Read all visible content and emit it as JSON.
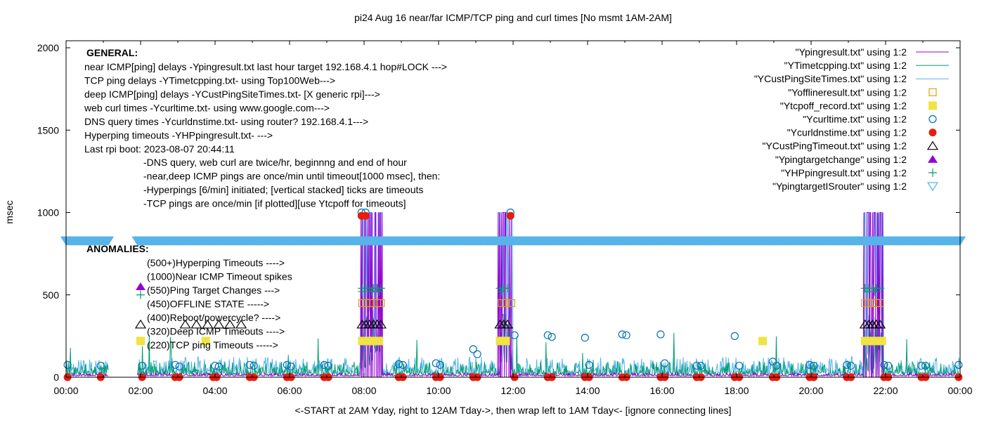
{
  "chart_data": {
    "type": "line",
    "title": "pi24 Aug 16  near/far ICMP/TCP ping and curl times [No msmt 1AM-2AM]",
    "xlabel": "<-START at 2AM Yday, right to 12AM Tday->, then wrap left to 1AM Tday<- [ignore connecting lines]",
    "ylabel": "msec",
    "xlim": [
      0,
      24
    ],
    "ylim": [
      0,
      2000
    ],
    "x_ticks": [
      "00:00",
      "02:00",
      "04:00",
      "06:00",
      "08:00",
      "10:00",
      "12:00",
      "14:00",
      "16:00",
      "18:00",
      "20:00",
      "22:00",
      "00:00"
    ],
    "y_ticks": [
      "0",
      "500",
      "1000",
      "1500",
      "2000"
    ],
    "legend_position": "top-right",
    "annotations": {
      "general_title": "GENERAL:",
      "general_lines": [
        "near ICMP[ping] delays -Ypingresult.txt last hour target 192.168.4.1 hop#LOCK --->",
        "TCP ping delays -YTimetcpping.txt- using Top100Web--->",
        "deep ICMP[ping] delays -YCustPingSiteTimes.txt- [X generic rpi]--->",
        "web curl times -Ycurltime.txt- using www.google.com--->",
        "DNS query times -Ycurldnstime.txt- using router? 192.168.4.1--->",
        "Hyperping timeouts -YHPpingresult.txt- --->",
        "Last rpi boot: 2023-08-07 20:44:11"
      ],
      "notes": [
        "-DNS query, web curl are twice/hr, beginnng and end of hour",
        "-near,deep ICMP pings are once/min until timeout[1000 msec], then:",
        "  -Hyperpings [6/min] initiated; [vertical stacked] ticks are timeouts",
        "-TCP pings are once/min [if plotted][use Ytcpoff for timeouts]"
      ],
      "anomalies_title": "ANOMALIES:",
      "anomalies": [
        "(500+)Hyperping Timeouts ---->",
        "(1000)Near ICMP Timeout spikes",
        "(550)Ping Target Changes --->",
        "(450)OFFLINE STATE ----->",
        "(400)Reboot/powercycle? ---->",
        "(320)Deep ICMP Timeouts ---->",
        "(220)TCP ping Timeouts ----->"
      ]
    },
    "outage_windows": [
      [
        7.9,
        8.5
      ],
      [
        11.6,
        12.0
      ],
      [
        21.4,
        21.95
      ]
    ],
    "gap_window": [
      1.15,
      1.9
    ],
    "series": [
      {
        "name": "\"Ypingresult.txt\" using 1:2",
        "style": "line",
        "color": "#9400d3",
        "baseline": 8,
        "noise": 10
      },
      {
        "name": "\"YTimetcpping.txt\" using 1:2",
        "style": "line",
        "color": "#009e73",
        "baseline": 15,
        "noise": 40
      },
      {
        "name": "\"YCustPingSiteTimes.txt\" using 1:2",
        "style": "line",
        "color": "#56b4e9",
        "baseline": 25,
        "noise": 50
      },
      {
        "name": "\"Yofflineresult.txt\" using 1:2",
        "style": "open-square",
        "color": "#e69f00",
        "points": [
          [
            7.95,
            450
          ],
          [
            8.05,
            450
          ],
          [
            8.15,
            450
          ],
          [
            8.25,
            450
          ],
          [
            8.35,
            450
          ],
          [
            8.45,
            450
          ],
          [
            11.7,
            450
          ],
          [
            11.8,
            450
          ],
          [
            11.95,
            450
          ],
          [
            21.45,
            450
          ],
          [
            21.55,
            450
          ],
          [
            21.65,
            450
          ],
          [
            21.75,
            450
          ],
          [
            21.85,
            450
          ]
        ]
      },
      {
        "name": "\"Ytcpoff_record.txt\" using 1:2",
        "style": "filled-square",
        "color": "#f0e442",
        "points": [
          [
            2.0,
            220
          ],
          [
            3.75,
            220
          ],
          [
            7.95,
            220
          ],
          [
            8.1,
            220
          ],
          [
            8.25,
            220
          ],
          [
            8.4,
            220
          ],
          [
            11.65,
            220
          ],
          [
            11.8,
            220
          ],
          [
            18.7,
            220
          ],
          [
            21.45,
            220
          ],
          [
            21.6,
            220
          ],
          [
            21.75,
            220
          ],
          [
            21.9,
            220
          ]
        ]
      },
      {
        "name": "\"Ycurltime.txt\" using 1:2",
        "style": "open-circle",
        "color": "#0072b2",
        "points": [
          [
            0.04,
            75
          ],
          [
            0.93,
            70
          ],
          [
            2.04,
            70
          ],
          [
            2.93,
            75
          ],
          [
            3.04,
            65
          ],
          [
            4.0,
            70
          ],
          [
            4.1,
            65
          ],
          [
            4.93,
            75
          ],
          [
            5.04,
            70
          ],
          [
            5.93,
            75
          ],
          [
            6.04,
            65
          ],
          [
            6.93,
            75
          ],
          [
            7.04,
            70
          ],
          [
            7.93,
            1000
          ],
          [
            8.04,
            1000
          ],
          [
            8.93,
            80
          ],
          [
            9.04,
            75
          ],
          [
            9.93,
            85
          ],
          [
            10.04,
            75
          ],
          [
            10.93,
            170
          ],
          [
            11.04,
            140
          ],
          [
            11.93,
            1000
          ],
          [
            12.04,
            255
          ],
          [
            12.93,
            255
          ],
          [
            13.04,
            245
          ],
          [
            13.93,
            240
          ],
          [
            14.04,
            75
          ],
          [
            14.93,
            260
          ],
          [
            15.04,
            255
          ],
          [
            15.96,
            260
          ],
          [
            16.07,
            85
          ],
          [
            16.93,
            70
          ],
          [
            17.04,
            70
          ],
          [
            17.95,
            250
          ],
          [
            18.07,
            70
          ],
          [
            18.97,
            95
          ],
          [
            19.07,
            70
          ],
          [
            19.96,
            75
          ],
          [
            20.07,
            70
          ],
          [
            20.96,
            75
          ],
          [
            21.07,
            70
          ],
          [
            21.96,
            75
          ],
          [
            22.07,
            70
          ],
          [
            22.96,
            70
          ],
          [
            23.07,
            70
          ],
          [
            23.96,
            75
          ]
        ]
      },
      {
        "name": "\"Ycurldnstime.txt\" using 1:2",
        "style": "filled-circle",
        "color": "#e51e10",
        "points": [
          [
            0.04,
            0
          ],
          [
            0.93,
            0
          ],
          [
            2.04,
            0
          ],
          [
            2.93,
            0
          ],
          [
            3.04,
            0
          ],
          [
            3.95,
            0
          ],
          [
            4.04,
            0
          ],
          [
            4.93,
            0
          ],
          [
            5.04,
            0
          ],
          [
            5.93,
            0
          ],
          [
            6.04,
            0
          ],
          [
            6.93,
            0
          ],
          [
            7.04,
            0
          ],
          [
            7.93,
            980
          ],
          [
            8.04,
            980
          ],
          [
            8.93,
            0
          ],
          [
            9.04,
            0
          ],
          [
            9.93,
            0
          ],
          [
            10.04,
            0
          ],
          [
            10.93,
            0
          ],
          [
            11.04,
            0
          ],
          [
            11.93,
            980
          ],
          [
            12.04,
            0
          ],
          [
            12.93,
            0
          ],
          [
            13.04,
            0
          ],
          [
            13.93,
            0
          ],
          [
            14.04,
            0
          ],
          [
            14.93,
            0
          ],
          [
            15.04,
            0
          ],
          [
            15.96,
            0
          ],
          [
            16.07,
            0
          ],
          [
            16.93,
            0
          ],
          [
            17.04,
            0
          ],
          [
            17.95,
            0
          ],
          [
            18.07,
            0
          ],
          [
            18.97,
            0
          ],
          [
            19.07,
            0
          ],
          [
            19.96,
            0
          ],
          [
            20.07,
            0
          ],
          [
            20.96,
            0
          ],
          [
            21.07,
            0
          ],
          [
            21.96,
            0
          ],
          [
            22.07,
            0
          ],
          [
            22.96,
            0
          ],
          [
            23.07,
            0
          ],
          [
            23.96,
            0
          ]
        ]
      },
      {
        "name": "\"YCustPingTimeout.txt\" using 1:2",
        "style": "open-triangle",
        "color": "#000000",
        "points": [
          [
            2.0,
            320
          ],
          [
            3.2,
            320
          ],
          [
            3.5,
            320
          ],
          [
            3.8,
            320
          ],
          [
            4.1,
            320
          ],
          [
            4.4,
            320
          ],
          [
            4.7,
            320
          ],
          [
            7.95,
            320
          ],
          [
            8.05,
            320
          ],
          [
            8.15,
            320
          ],
          [
            8.25,
            320
          ],
          [
            8.35,
            320
          ],
          [
            8.45,
            320
          ],
          [
            11.65,
            320
          ],
          [
            11.75,
            320
          ],
          [
            11.85,
            320
          ],
          [
            21.45,
            320
          ],
          [
            21.55,
            320
          ],
          [
            21.65,
            320
          ],
          [
            21.75,
            320
          ],
          [
            21.85,
            320
          ]
        ]
      },
      {
        "name": "\"Ypingtargetchange\" using 1:2",
        "style": "filled-triangle",
        "color": "#9400d3",
        "points": [
          [
            2.0,
            550
          ]
        ]
      },
      {
        "name": "\"YHPpingresult.txt\" using 1:2",
        "style": "plus",
        "color": "#009e73",
        "points": [
          [
            2.0,
            500
          ],
          [
            7.95,
            540
          ],
          [
            8.05,
            540
          ],
          [
            8.15,
            540
          ],
          [
            8.25,
            540
          ],
          [
            8.35,
            540
          ],
          [
            8.45,
            540
          ],
          [
            7.95,
            520
          ],
          [
            8.2,
            520
          ],
          [
            8.4,
            520
          ],
          [
            11.65,
            540
          ],
          [
            11.75,
            540
          ],
          [
            11.85,
            540
          ],
          [
            11.7,
            520
          ],
          [
            21.45,
            540
          ],
          [
            21.55,
            540
          ],
          [
            21.65,
            540
          ],
          [
            21.75,
            540
          ],
          [
            21.85,
            540
          ],
          [
            21.5,
            520
          ],
          [
            21.7,
            520
          ]
        ]
      },
      {
        "name": "\"YpingtargetISrouter\" using 1:2",
        "style": "open-down-triangle",
        "color": "#56b4e9",
        "value": 830
      }
    ]
  }
}
